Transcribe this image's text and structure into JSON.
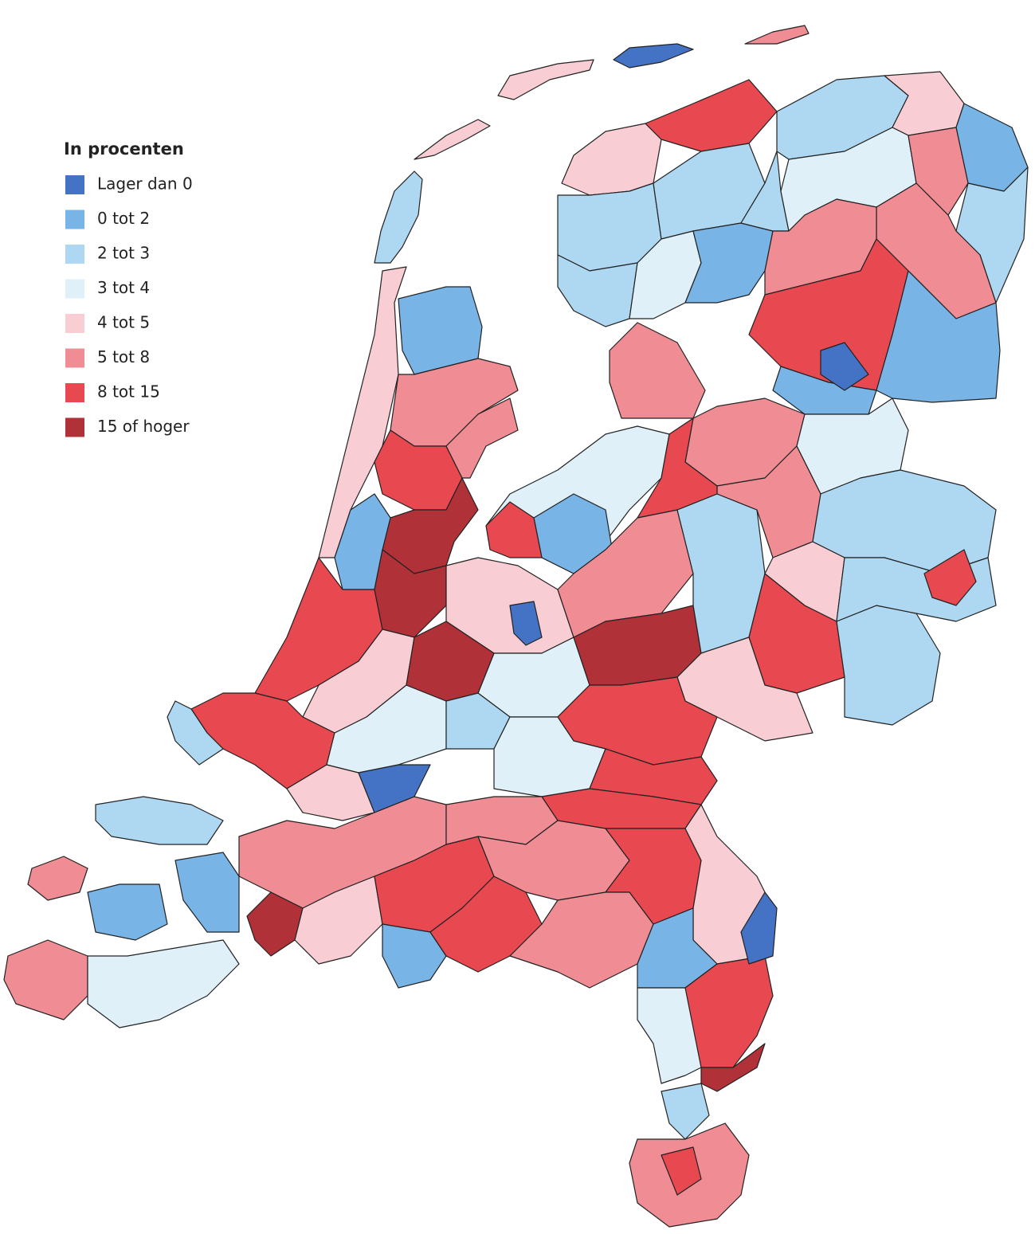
{
  "legend": {
    "title": "In procenten",
    "items": [
      {
        "label": "Lager dan 0",
        "color": "#4472c4"
      },
      {
        "label": "0 tot 2",
        "color": "#78b4e6"
      },
      {
        "label": "2 tot 3",
        "color": "#aed8f2"
      },
      {
        "label": "3 tot 4",
        "color": "#dff0f8"
      },
      {
        "label": "4 tot 5",
        "color": "#f8cdd4"
      },
      {
        "label": "5 tot 8",
        "color": "#f08c94"
      },
      {
        "label": "8 tot 15",
        "color": "#e84850"
      },
      {
        "label": "15 of hoger",
        "color": "#b03238"
      }
    ]
  }
}
